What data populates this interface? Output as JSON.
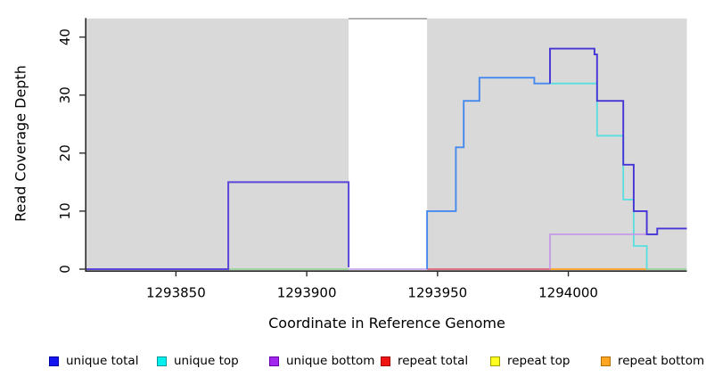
{
  "chart_data": {
    "type": "line",
    "subtype": "step-coverage",
    "title": "",
    "xlabel": "Coordinate in Reference Genome",
    "ylabel": "Read Coverage Depth",
    "xlim": [
      1293815.8,
      1294045.3
    ],
    "ylim": [
      0,
      43.2
    ],
    "xticks": [
      1293850,
      1293900,
      1293950,
      1294000
    ],
    "yticks": [
      0,
      10,
      20,
      30,
      40
    ],
    "grid": false,
    "panel_bg": "#d9d9d9",
    "axis_color": "#2b2b2b",
    "gap_region": {
      "start": 1293916,
      "end": 1293946,
      "fill": "#ffffff",
      "border": "#8f8f8f"
    },
    "series": [
      {
        "name": "unique total",
        "color": "#1414f0",
        "steps": [
          [
            1293815.8,
            0
          ],
          [
            1293870,
            15
          ],
          [
            1293916,
            0
          ],
          [
            1293946,
            10
          ],
          [
            1293957,
            21
          ],
          [
            1293960,
            29
          ],
          [
            1293966,
            33
          ],
          [
            1293987,
            32
          ],
          [
            1293993,
            38
          ],
          [
            1294010,
            37
          ],
          [
            1294011,
            29
          ],
          [
            1294021,
            18
          ],
          [
            1294025,
            10
          ],
          [
            1294030,
            6
          ],
          [
            1294034,
            7
          ],
          [
            1294045.3,
            7
          ]
        ]
      },
      {
        "name": "unique top",
        "color": "#00f0f0",
        "steps": [
          [
            1293815.8,
            0
          ],
          [
            1293946,
            10
          ],
          [
            1293957,
            21
          ],
          [
            1293960,
            29
          ],
          [
            1293966,
            33
          ],
          [
            1293987,
            32
          ],
          [
            1294011,
            23
          ],
          [
            1294021,
            12
          ],
          [
            1294025,
            4
          ],
          [
            1294030,
            0
          ],
          [
            1294045.3,
            0
          ]
        ]
      },
      {
        "name": "unique bottom",
        "color": "#a228f0",
        "steps": [
          [
            1293815.8,
            0
          ],
          [
            1293870,
            15
          ],
          [
            1293916,
            0
          ],
          [
            1293993,
            6
          ],
          [
            1294034,
            7
          ],
          [
            1294045.3,
            7
          ]
        ]
      },
      {
        "name": "repeat total",
        "color": "#f01414",
        "steps": [
          [
            1293815.8,
            0
          ],
          [
            1294045.3,
            0
          ]
        ]
      },
      {
        "name": "repeat top",
        "color": "#ffff20",
        "steps": [
          [
            1293815.8,
            0
          ],
          [
            1294045.3,
            0
          ]
        ]
      },
      {
        "name": "repeat bottom",
        "color": "#ffa520",
        "steps": [
          [
            1293815.8,
            0
          ],
          [
            1294045.3,
            0
          ]
        ]
      }
    ],
    "rendered_segments": [
      {
        "name": "baseline-green-under-box",
        "color": "#90d290",
        "width": 1.6,
        "points": [
          [
            1293870,
            0
          ],
          [
            1293916,
            0
          ]
        ]
      },
      {
        "name": "baseline-gap-lavender",
        "color": "#c49ae8",
        "width": 1.6,
        "points": [
          [
            1293916,
            0
          ],
          [
            1293946,
            0
          ]
        ]
      },
      {
        "name": "baseline-repeat-red",
        "color": "#e05069",
        "width": 1.6,
        "points": [
          [
            1293946,
            0
          ],
          [
            1293993,
            0
          ]
        ]
      },
      {
        "name": "baseline-repeat-orange",
        "color": "#ffa01e",
        "width": 1.8,
        "points": [
          [
            1293993,
            0
          ],
          [
            1294030,
            0
          ]
        ]
      },
      {
        "name": "baseline-right-green",
        "color": "#90d290",
        "width": 1.6,
        "points": [
          [
            1294030,
            0
          ],
          [
            1294045.3,
            0
          ]
        ]
      },
      {
        "name": "unique-top-descent",
        "color": "#58dede",
        "width": 1.8,
        "points": [
          [
            1293993,
            32
          ],
          [
            1294011,
            32
          ],
          [
            1294011,
            23
          ],
          [
            1294021,
            23
          ],
          [
            1294021,
            12
          ],
          [
            1294025,
            12
          ],
          [
            1294025,
            4
          ],
          [
            1294030,
            4
          ],
          [
            1294030,
            0
          ]
        ]
      },
      {
        "name": "unique-bottom-level",
        "color": "#c49ae8",
        "width": 1.8,
        "points": [
          [
            1293993,
            0
          ],
          [
            1293993,
            6
          ],
          [
            1294034,
            6
          ]
        ]
      },
      {
        "name": "unique-total-ascent",
        "color": "#4689ee",
        "width": 1.9,
        "points": [
          [
            1293946,
            0
          ],
          [
            1293946,
            10
          ],
          [
            1293957,
            10
          ],
          [
            1293957,
            21
          ],
          [
            1293960,
            21
          ],
          [
            1293960,
            29
          ],
          [
            1293966,
            29
          ],
          [
            1293966,
            33
          ],
          [
            1293987,
            33
          ],
          [
            1293987,
            32
          ],
          [
            1293993,
            32
          ]
        ]
      },
      {
        "name": "unique-total-left-box",
        "color": "#5a46d8",
        "width": 2.0,
        "points": [
          [
            1293815.8,
            0
          ],
          [
            1293870,
            0
          ],
          [
            1293870,
            15
          ],
          [
            1293916,
            15
          ],
          [
            1293916,
            0.3
          ]
        ]
      },
      {
        "name": "unique-total-peak-descent",
        "color": "#4534d6",
        "width": 1.9,
        "points": [
          [
            1293993,
            32
          ],
          [
            1293993,
            38
          ],
          [
            1294010,
            38
          ],
          [
            1294010,
            37
          ],
          [
            1294011,
            37
          ],
          [
            1294011,
            29
          ],
          [
            1294021,
            29
          ],
          [
            1294021,
            18
          ],
          [
            1294025,
            18
          ],
          [
            1294025,
            10
          ],
          [
            1294030,
            10
          ],
          [
            1294030,
            6
          ],
          [
            1294034,
            6
          ],
          [
            1294034,
            7
          ],
          [
            1294045.3,
            7
          ]
        ]
      }
    ],
    "legend_position": "bottom"
  },
  "legend": {
    "items": [
      {
        "label": "unique total",
        "color": "#1414f0",
        "border": "#0000a0"
      },
      {
        "label": "unique top",
        "color": "#00f0f0",
        "border": "#009696"
      },
      {
        "label": "unique bottom",
        "color": "#a228f0",
        "border": "#6a00a8"
      },
      {
        "label": "repeat total",
        "color": "#f01414",
        "border": "#a00000"
      },
      {
        "label": "repeat top",
        "color": "#ffff20",
        "border": "#a0a000"
      },
      {
        "label": "repeat bottom",
        "color": "#ffa520",
        "border": "#b06f00"
      }
    ]
  }
}
